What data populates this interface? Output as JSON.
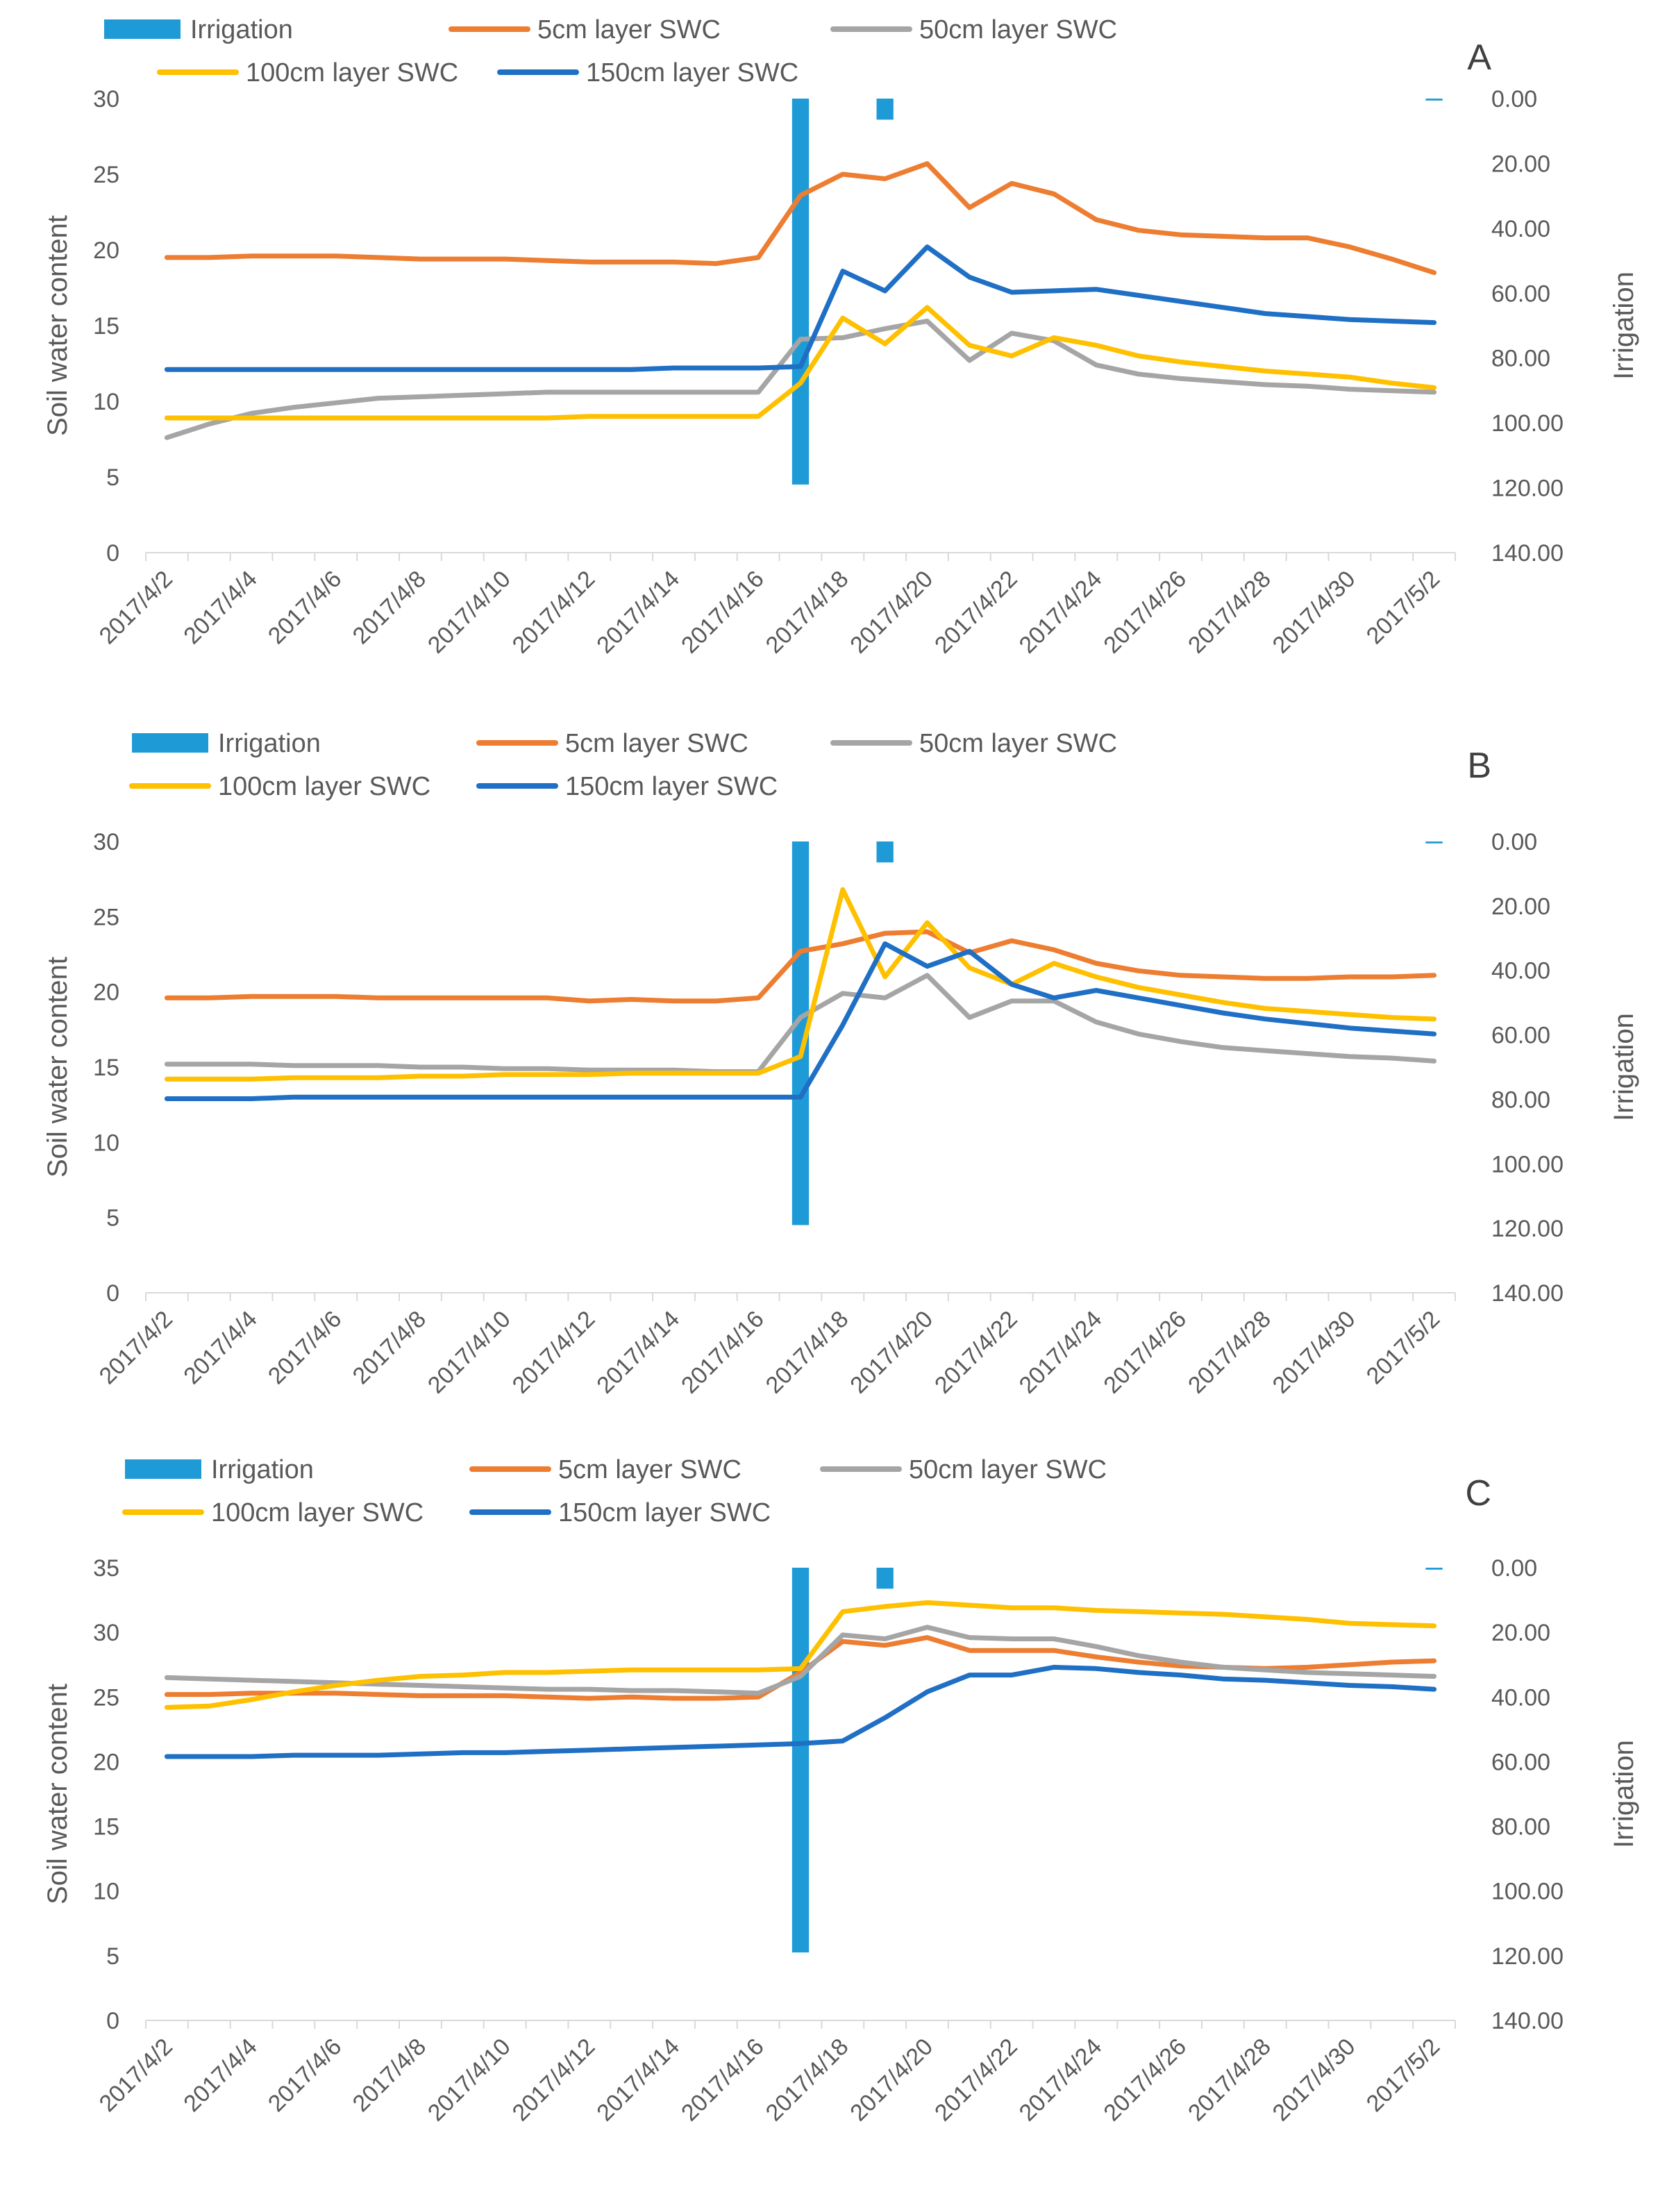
{
  "colors": {
    "irrigation": "#1E9BD7",
    "swc_5cm": "#ED7D31",
    "swc_50cm": "#A5A5A5",
    "swc_100cm": "#FFC000",
    "swc_150cm": "#1F6FC5",
    "axis": "#D9D9D9",
    "text": "#595959"
  },
  "chart_data": [
    {
      "type": "line",
      "panel_label": "A",
      "legend": {
        "irrigation": "Irrigation",
        "swc_5cm": "5cm layer SWC",
        "swc_50cm": "50cm layer SWC",
        "swc_100cm": "100cm layer SWC",
        "swc_150cm": "150cm layer SWC"
      },
      "ylabel": "Soil water content",
      "y2label": "Irrigation",
      "ylim": [
        0,
        30
      ],
      "yticks": [
        "0",
        "5",
        "10",
        "15",
        "20",
        "25",
        "30"
      ],
      "y2lim": [
        0,
        140
      ],
      "y2_inverted": true,
      "y2ticks": [
        "0.00",
        "20.00",
        "40.00",
        "60.00",
        "80.00",
        "100.00",
        "120.00",
        "140.00"
      ],
      "x": [
        "2017/4/2",
        "2017/4/3",
        "2017/4/4",
        "2017/4/5",
        "2017/4/6",
        "2017/4/7",
        "2017/4/8",
        "2017/4/9",
        "2017/4/10",
        "2017/4/11",
        "2017/4/12",
        "2017/4/13",
        "2017/4/14",
        "2017/4/15",
        "2017/4/16",
        "2017/4/17",
        "2017/4/18",
        "2017/4/19",
        "2017/4/20",
        "2017/4/21",
        "2017/4/22",
        "2017/4/23",
        "2017/4/24",
        "2017/4/25",
        "2017/4/26",
        "2017/4/27",
        "2017/4/28",
        "2017/4/29",
        "2017/4/30",
        "2017/5/1",
        "2017/5/2"
      ],
      "xtick_labels": [
        "2017/4/2",
        "2017/4/4",
        "2017/4/6",
        "2017/4/8",
        "2017/4/10",
        "2017/4/12",
        "2017/4/14",
        "2017/4/16",
        "2017/4/18",
        "2017/4/20",
        "2017/4/22",
        "2017/4/24",
        "2017/4/26",
        "2017/4/28",
        "2017/4/30",
        "2017/5/2"
      ],
      "irrigation": [
        0,
        0,
        0,
        0,
        0,
        0,
        0,
        0,
        0,
        0,
        0,
        0,
        0,
        0,
        0,
        119,
        0,
        6.5,
        0,
        0,
        0,
        0,
        0,
        0,
        0,
        0,
        0,
        0,
        0,
        0,
        0.6
      ],
      "series": [
        {
          "key": "swc_5cm",
          "values": [
            19.5,
            19.5,
            19.6,
            19.6,
            19.6,
            19.5,
            19.4,
            19.4,
            19.4,
            19.3,
            19.2,
            19.2,
            19.2,
            19.1,
            19.5,
            23.6,
            25.0,
            24.7,
            25.7,
            22.8,
            24.4,
            23.7,
            22.0,
            21.3,
            21.0,
            20.9,
            20.8,
            20.8,
            20.2,
            19.4,
            18.5
          ]
        },
        {
          "key": "swc_50cm",
          "values": [
            7.6,
            8.5,
            9.2,
            9.6,
            9.9,
            10.2,
            10.3,
            10.4,
            10.5,
            10.6,
            10.6,
            10.6,
            10.6,
            10.6,
            10.6,
            14.1,
            14.2,
            14.8,
            15.3,
            12.7,
            14.5,
            14.0,
            12.4,
            11.8,
            11.5,
            11.3,
            11.1,
            11.0,
            10.8,
            10.7,
            10.6
          ]
        },
        {
          "key": "swc_100cm",
          "values": [
            8.9,
            8.9,
            8.9,
            8.9,
            8.9,
            8.9,
            8.9,
            8.9,
            8.9,
            8.9,
            9.0,
            9.0,
            9.0,
            9.0,
            9.0,
            11.2,
            15.5,
            13.8,
            16.2,
            13.7,
            13.0,
            14.2,
            13.7,
            13.0,
            12.6,
            12.3,
            12.0,
            11.8,
            11.6,
            11.2,
            10.9
          ]
        },
        {
          "key": "swc_150cm",
          "values": [
            12.1,
            12.1,
            12.1,
            12.1,
            12.1,
            12.1,
            12.1,
            12.1,
            12.1,
            12.1,
            12.1,
            12.1,
            12.2,
            12.2,
            12.2,
            12.3,
            18.6,
            17.3,
            20.2,
            18.2,
            17.2,
            17.3,
            17.4,
            17.0,
            16.6,
            16.2,
            15.8,
            15.6,
            15.4,
            15.3,
            15.2
          ]
        }
      ]
    },
    {
      "type": "line",
      "panel_label": "B",
      "legend": {
        "irrigation": "Irrigation",
        "swc_5cm": "5cm layer SWC",
        "swc_50cm": "50cm layer SWC",
        "swc_100cm": "100cm layer SWC",
        "swc_150cm": "150cm layer SWC"
      },
      "ylabel": "Soil water content",
      "y2label": "Irrigation",
      "ylim": [
        0,
        30
      ],
      "yticks": [
        "0",
        "5",
        "10",
        "15",
        "20",
        "25",
        "30"
      ],
      "y2lim": [
        0,
        140
      ],
      "y2_inverted": true,
      "y2ticks": [
        "0.00",
        "20.00",
        "40.00",
        "60.00",
        "80.00",
        "100.00",
        "120.00",
        "140.00"
      ],
      "x": [
        "2017/4/2",
        "2017/4/3",
        "2017/4/4",
        "2017/4/5",
        "2017/4/6",
        "2017/4/7",
        "2017/4/8",
        "2017/4/9",
        "2017/4/10",
        "2017/4/11",
        "2017/4/12",
        "2017/4/13",
        "2017/4/14",
        "2017/4/15",
        "2017/4/16",
        "2017/4/17",
        "2017/4/18",
        "2017/4/19",
        "2017/4/20",
        "2017/4/21",
        "2017/4/22",
        "2017/4/23",
        "2017/4/24",
        "2017/4/25",
        "2017/4/26",
        "2017/4/27",
        "2017/4/28",
        "2017/4/29",
        "2017/4/30",
        "2017/5/1",
        "2017/5/2"
      ],
      "xtick_labels": [
        "2017/4/2",
        "2017/4/4",
        "2017/4/6",
        "2017/4/8",
        "2017/4/10",
        "2017/4/12",
        "2017/4/14",
        "2017/4/16",
        "2017/4/18",
        "2017/4/20",
        "2017/4/22",
        "2017/4/24",
        "2017/4/26",
        "2017/4/28",
        "2017/4/30",
        "2017/5/2"
      ],
      "irrigation": [
        0,
        0,
        0,
        0,
        0,
        0,
        0,
        0,
        0,
        0,
        0,
        0,
        0,
        0,
        0,
        119,
        0,
        6.5,
        0,
        0,
        0,
        0,
        0,
        0,
        0,
        0,
        0,
        0,
        0,
        0,
        0.6
      ],
      "series": [
        {
          "key": "swc_5cm",
          "values": [
            19.6,
            19.6,
            19.7,
            19.7,
            19.7,
            19.6,
            19.6,
            19.6,
            19.6,
            19.6,
            19.4,
            19.5,
            19.4,
            19.4,
            19.6,
            22.7,
            23.2,
            23.9,
            24.0,
            22.6,
            23.4,
            22.8,
            21.9,
            21.4,
            21.1,
            21.0,
            20.9,
            20.9,
            21.0,
            21.0,
            21.1
          ]
        },
        {
          "key": "swc_50cm",
          "values": [
            15.2,
            15.2,
            15.2,
            15.1,
            15.1,
            15.1,
            15.0,
            15.0,
            14.9,
            14.9,
            14.8,
            14.8,
            14.8,
            14.7,
            14.7,
            18.3,
            19.9,
            19.6,
            21.1,
            18.3,
            19.4,
            19.4,
            18.0,
            17.2,
            16.7,
            16.3,
            16.1,
            15.9,
            15.7,
            15.6,
            15.4
          ]
        },
        {
          "key": "swc_100cm",
          "values": [
            14.2,
            14.2,
            14.2,
            14.3,
            14.3,
            14.3,
            14.4,
            14.4,
            14.5,
            14.5,
            14.5,
            14.6,
            14.6,
            14.6,
            14.6,
            15.7,
            26.8,
            21.0,
            24.6,
            21.6,
            20.5,
            21.9,
            21.0,
            20.3,
            19.8,
            19.3,
            18.9,
            18.7,
            18.5,
            18.3,
            18.2
          ]
        },
        {
          "key": "swc_150cm",
          "values": [
            12.9,
            12.9,
            12.9,
            13.0,
            13.0,
            13.0,
            13.0,
            13.0,
            13.0,
            13.0,
            13.0,
            13.0,
            13.0,
            13.0,
            13.0,
            13.0,
            17.8,
            23.2,
            21.7,
            22.7,
            20.5,
            19.6,
            20.1,
            19.6,
            19.1,
            18.6,
            18.2,
            17.9,
            17.6,
            17.4,
            17.2
          ]
        }
      ]
    },
    {
      "type": "line",
      "panel_label": "C",
      "legend": {
        "irrigation": "Irrigation",
        "swc_5cm": "5cm layer SWC",
        "swc_50cm": "50cm layer SWC",
        "swc_100cm": "100cm layer SWC",
        "swc_150cm": "150cm layer SWC"
      },
      "ylabel": "Soil water content",
      "y2label": "Irrigation",
      "ylim": [
        0,
        35
      ],
      "yticks": [
        "0",
        "5",
        "10",
        "15",
        "20",
        "25",
        "30",
        "35"
      ],
      "y2lim": [
        0,
        140
      ],
      "y2_inverted": true,
      "y2ticks": [
        "0.00",
        "20.00",
        "40.00",
        "60.00",
        "80.00",
        "100.00",
        "120.00",
        "140.00"
      ],
      "x": [
        "2017/4/2",
        "2017/4/3",
        "2017/4/4",
        "2017/4/5",
        "2017/4/6",
        "2017/4/7",
        "2017/4/8",
        "2017/4/9",
        "2017/4/10",
        "2017/4/11",
        "2017/4/12",
        "2017/4/13",
        "2017/4/14",
        "2017/4/15",
        "2017/4/16",
        "2017/4/17",
        "2017/4/18",
        "2017/4/19",
        "2017/4/20",
        "2017/4/21",
        "2017/4/22",
        "2017/4/23",
        "2017/4/24",
        "2017/4/25",
        "2017/4/26",
        "2017/4/27",
        "2017/4/28",
        "2017/4/29",
        "2017/4/30",
        "2017/5/1",
        "2017/5/2"
      ],
      "xtick_labels": [
        "2017/4/2",
        "2017/4/4",
        "2017/4/6",
        "2017/4/8",
        "2017/4/10",
        "2017/4/12",
        "2017/4/14",
        "2017/4/16",
        "2017/4/18",
        "2017/4/20",
        "2017/4/22",
        "2017/4/24",
        "2017/4/26",
        "2017/4/28",
        "2017/4/30",
        "2017/5/2"
      ],
      "irrigation": [
        0,
        0,
        0,
        0,
        0,
        0,
        0,
        0,
        0,
        0,
        0,
        0,
        0,
        0,
        0,
        119,
        0,
        6.5,
        0,
        0,
        0,
        0,
        0,
        0,
        0,
        0,
        0,
        0,
        0,
        0,
        0.6
      ],
      "series": [
        {
          "key": "swc_5cm",
          "values": [
            25.2,
            25.2,
            25.3,
            25.3,
            25.3,
            25.2,
            25.1,
            25.1,
            25.1,
            25.0,
            24.9,
            25.0,
            24.9,
            24.9,
            25.0,
            26.9,
            29.3,
            29.0,
            29.6,
            28.6,
            28.6,
            28.6,
            28.1,
            27.7,
            27.4,
            27.3,
            27.2,
            27.3,
            27.5,
            27.7,
            27.8
          ]
        },
        {
          "key": "swc_50cm",
          "values": [
            26.5,
            26.4,
            26.3,
            26.2,
            26.1,
            26.0,
            25.9,
            25.8,
            25.7,
            25.6,
            25.6,
            25.5,
            25.5,
            25.4,
            25.3,
            26.6,
            29.8,
            29.5,
            30.4,
            29.6,
            29.5,
            29.5,
            28.9,
            28.2,
            27.7,
            27.3,
            27.1,
            26.9,
            26.8,
            26.7,
            26.6
          ]
        },
        {
          "key": "swc_100cm",
          "values": [
            24.2,
            24.3,
            24.8,
            25.4,
            25.9,
            26.3,
            26.6,
            26.7,
            26.9,
            26.9,
            27.0,
            27.1,
            27.1,
            27.1,
            27.1,
            27.2,
            31.6,
            32.0,
            32.3,
            32.1,
            31.9,
            31.9,
            31.7,
            31.6,
            31.5,
            31.4,
            31.2,
            31.0,
            30.7,
            30.6,
            30.5
          ]
        },
        {
          "key": "swc_150cm",
          "values": [
            20.4,
            20.4,
            20.4,
            20.5,
            20.5,
            20.5,
            20.6,
            20.7,
            20.7,
            20.8,
            20.9,
            21.0,
            21.1,
            21.2,
            21.3,
            21.4,
            21.6,
            23.4,
            25.4,
            26.7,
            26.7,
            27.3,
            27.2,
            26.9,
            26.7,
            26.4,
            26.3,
            26.1,
            25.9,
            25.8,
            25.6
          ]
        }
      ]
    }
  ]
}
